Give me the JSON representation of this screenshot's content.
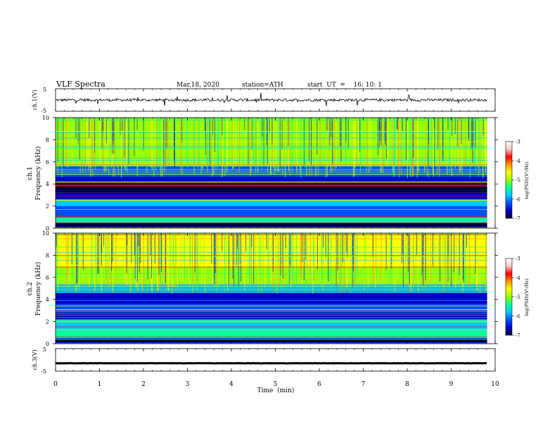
{
  "header": {
    "title": "VLF  Spectra",
    "date": "Mar.18, 2020",
    "station": "station=ATH",
    "start": "start  UT  =    16: 10: 1"
  },
  "colors": {
    "background": "#ffffff",
    "axis": "#000000",
    "colormap": [
      "#000030",
      "#0000c8",
      "#0050ff",
      "#00c8ff",
      "#00ff96",
      "#96ff00",
      "#ffff00",
      "#ff9600",
      "#ff0000",
      "#ffc8c8",
      "#ffffff"
    ]
  },
  "chart_data": [
    {
      "type": "line",
      "panel": "ch1-waveform",
      "ylabel": "ch.1(V)",
      "ylim": [
        -5,
        5
      ],
      "ytick_labels": [
        "5",
        "-5"
      ],
      "xlim": [
        0,
        10
      ],
      "mean_value": 0,
      "spread": 1.2
    },
    {
      "type": "heatmap",
      "panel": "ch1-spectrogram",
      "ylabel_top": "ch.1",
      "ylabel": "Frequency  (kHz)",
      "ylim": [
        0,
        10
      ],
      "ytick_labels": [
        "0",
        "2",
        "4",
        "6",
        "8",
        "10"
      ],
      "xlim": [
        0,
        10
      ],
      "colorbar_label": "log(PSD)(V²/Hz)",
      "colorbar_range": [
        -7,
        -3
      ],
      "colorbar_tick_labels": [
        "-3",
        "-4",
        "-5",
        "-6",
        "-7"
      ],
      "bands": [
        {
          "range": [
            0,
            0.5
          ],
          "value": -6.4
        },
        {
          "range": [
            0.5,
            1.0
          ],
          "value": -5.2
        },
        {
          "range": [
            1.0,
            2.0
          ],
          "value": -6.0
        },
        {
          "range": [
            2.0,
            2.6
          ],
          "value": -5.5
        },
        {
          "range": [
            2.6,
            3.2
          ],
          "value": -6.6
        },
        {
          "range": [
            3.2,
            4.2
          ],
          "value": -6.9
        },
        {
          "range": [
            4.2,
            4.8
          ],
          "value": -6.3
        },
        {
          "range": [
            4.8,
            5.6
          ],
          "value": -5.9
        },
        {
          "range": [
            5.6,
            7.0
          ],
          "value": -5.0
        },
        {
          "range": [
            7.0,
            10.0
          ],
          "value": -4.7
        }
      ]
    },
    {
      "type": "heatmap",
      "panel": "ch2-spectrogram",
      "ylabel_top": "ch.2",
      "ylabel": "Frequency  (kHz)",
      "ylim": [
        0,
        10
      ],
      "ytick_labels": [
        "0",
        "2",
        "4",
        "6",
        "8",
        "10"
      ],
      "xlim": [
        0,
        10
      ],
      "colorbar_label": "log(PSD)(V²/Hz)",
      "colorbar_range": [
        -7,
        -3
      ],
      "colorbar_tick_labels": [
        "-3",
        "-4",
        "-5",
        "-6",
        "-7"
      ],
      "bands": [
        {
          "range": [
            0,
            0.5
          ],
          "value": -6.3
        },
        {
          "range": [
            0.5,
            1.2
          ],
          "value": -5.1
        },
        {
          "range": [
            1.2,
            2.2
          ],
          "value": -5.8
        },
        {
          "range": [
            2.2,
            3.0
          ],
          "value": -6.6
        },
        {
          "range": [
            3.0,
            3.6
          ],
          "value": -5.9
        },
        {
          "range": [
            3.6,
            4.6
          ],
          "value": -6.5
        },
        {
          "range": [
            4.6,
            5.4
          ],
          "value": -5.6
        },
        {
          "range": [
            5.4,
            7.0
          ],
          "value": -5.0
        },
        {
          "range": [
            7.0,
            10.0
          ],
          "value": -4.6
        }
      ]
    },
    {
      "type": "line",
      "panel": "ch3-waveform",
      "ylabel": "ch.3(V)",
      "ylim": [
        -5,
        5
      ],
      "ytick_labels": [
        "5",
        "-5"
      ],
      "xlim": [
        0,
        10
      ],
      "mean_value": -1.5,
      "spread": 0.15
    }
  ],
  "xaxis": {
    "label": "Time  (min)",
    "ticks": [
      0,
      1,
      2,
      3,
      4,
      5,
      6,
      7,
      8,
      9,
      10
    ],
    "tick_labels": [
      "0",
      "1",
      "2",
      "3",
      "4",
      "5",
      "6",
      "7",
      "8",
      "9",
      "10"
    ],
    "data_end": 9.82
  }
}
